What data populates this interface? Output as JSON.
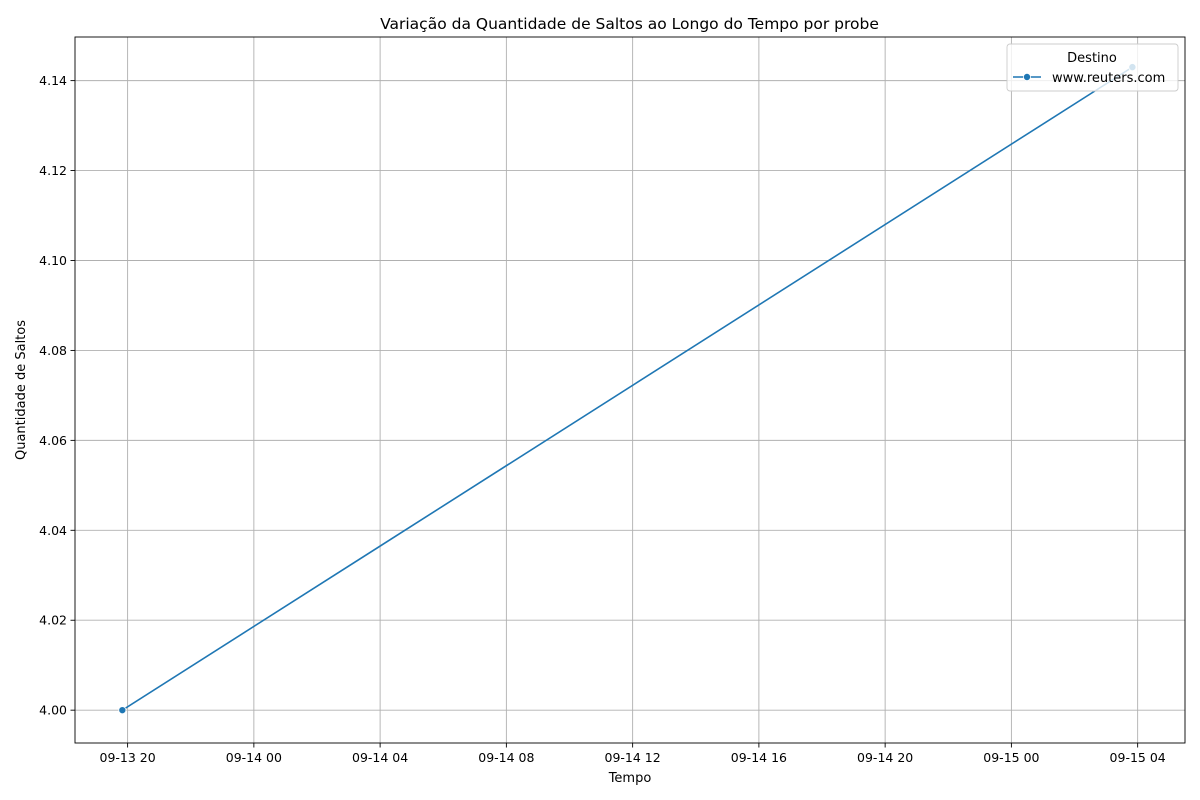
{
  "chart_data": {
    "type": "line",
    "title": "Variação da Quantidade de Saltos ao Longo do Tempo por probe",
    "xlabel": "Tempo",
    "ylabel": "Quantidade de Saltos",
    "x_ticks": [
      "09-13 20",
      "09-14 00",
      "09-14 04",
      "09-14 08",
      "09-14 12",
      "09-14 16",
      "09-14 20",
      "09-15 00",
      "09-15 04"
    ],
    "y_ticks": [
      "4.00",
      "4.02",
      "4.04",
      "4.06",
      "4.08",
      "4.10",
      "4.12",
      "4.14"
    ],
    "y_tick_values": [
      4.0,
      4.02,
      4.04,
      4.06,
      4.08,
      4.1,
      4.12,
      4.14
    ],
    "xlim": [
      "2023-09-13 18:20",
      "2023-09-15 05:30"
    ],
    "ylim": [
      3.9927,
      4.1497
    ],
    "grid": true,
    "legend": {
      "title": "Destino",
      "placement": "top-right"
    },
    "series": [
      {
        "name": "www.reuters.com",
        "color": "#1f77b4",
        "marker": "circle",
        "points": [
          {
            "x": "2023-09-13 19:50",
            "y": 4.0
          },
          {
            "x": "2023-09-15 03:50",
            "y": 4.143
          }
        ]
      }
    ]
  }
}
